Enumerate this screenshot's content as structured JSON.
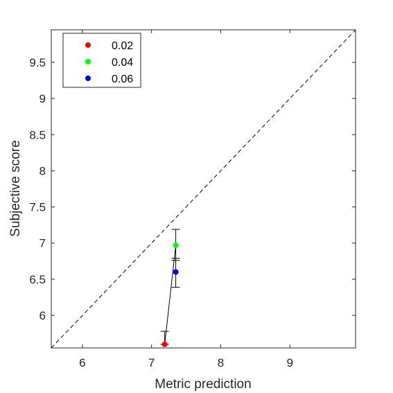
{
  "chart_data": {
    "type": "scatter",
    "title": "",
    "xlabel": "Metric prediction",
    "ylabel": "Subjective score",
    "xlim": [
      5.55,
      9.95
    ],
    "ylim": [
      5.55,
      9.95
    ],
    "xticks": [
      6,
      7,
      8,
      9
    ],
    "yticks": [
      6,
      6.5,
      7,
      7.5,
      8,
      8.5,
      9,
      9.5
    ],
    "xtick_labels": [
      "6",
      "7",
      "8",
      "9"
    ],
    "ytick_labels": [
      "6",
      "6.5",
      "7",
      "7.5",
      "8",
      "8.5",
      "9",
      "9.5"
    ],
    "grid": false,
    "identity_line": true,
    "legend_position": "top-left",
    "series": [
      {
        "name": "0.02",
        "color": "#ff0000",
        "x": 7.19,
        "y": 5.6,
        "err_low": 5.6,
        "err_high": 5.78
      },
      {
        "name": "0.04",
        "color": "#00ff00",
        "x": 7.35,
        "y": 6.97,
        "err_low": 6.76,
        "err_high": 7.19
      },
      {
        "name": "0.06",
        "color": "#0000ff",
        "x": 7.35,
        "y": 6.6,
        "err_low": 6.39,
        "err_high": 6.79
      }
    ],
    "connecting_line": {
      "color": "#000000",
      "x": [
        7.19,
        7.35
      ],
      "y": [
        5.6,
        6.97
      ]
    }
  }
}
